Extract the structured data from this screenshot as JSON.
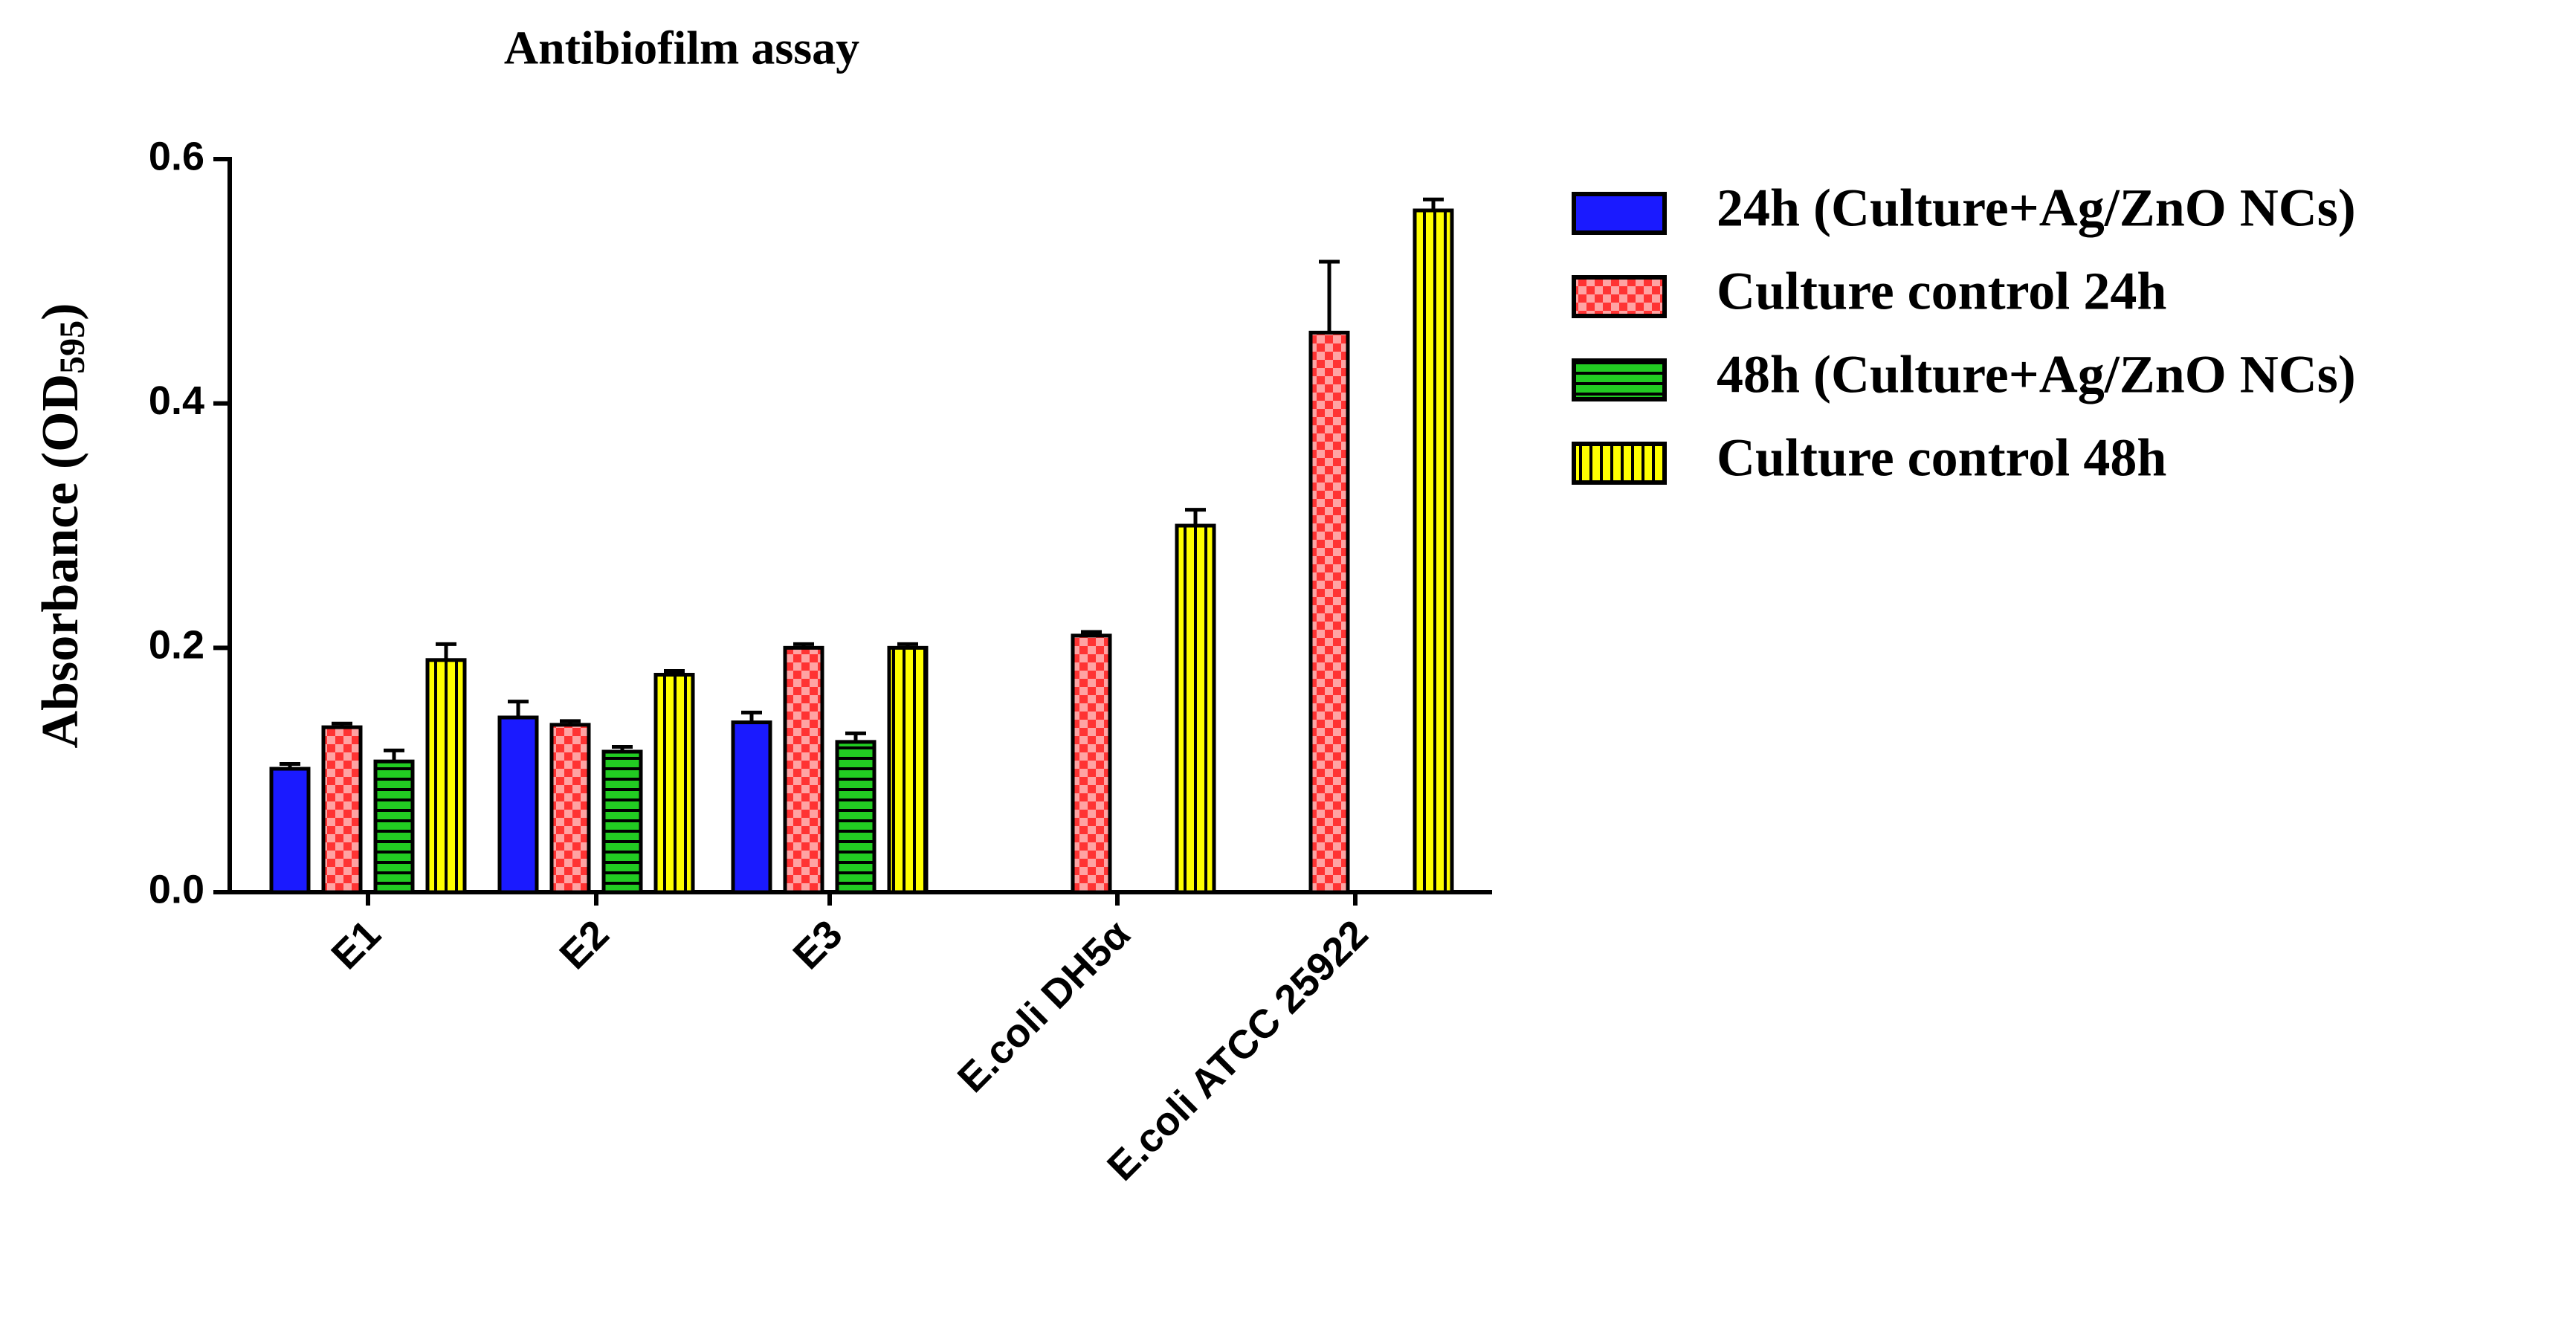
{
  "chart_data": {
    "type": "bar",
    "title": "Antibiofilm assay",
    "y_label_parts": [
      "Absorbance (OD",
      "595",
      ")"
    ],
    "categories": [
      "E1",
      "E2",
      "E3",
      "E.coli DH5α",
      "E.coli ATCC 25922"
    ],
    "series": [
      {
        "name": "24h (Culture+Ag/ZnO NCs)",
        "color": "#1a1aff",
        "pattern": "solid",
        "values": [
          0.101,
          0.143,
          0.139,
          null,
          null
        ],
        "errors": [
          0.004,
          0.013,
          0.008,
          null,
          null
        ]
      },
      {
        "name": "Culture control 24h",
        "color": "#ff3333",
        "pattern": "checker",
        "values": [
          0.135,
          0.137,
          0.2,
          0.21,
          0.458
        ],
        "errors": [
          0.003,
          0.003,
          0.003,
          0.003,
          0.058
        ]
      },
      {
        "name": "48h (Culture+Ag/ZnO NCs)",
        "color": "#22cc22",
        "pattern": "hstripe",
        "values": [
          0.107,
          0.115,
          0.123,
          null,
          null
        ],
        "errors": [
          0.009,
          0.004,
          0.007,
          null,
          null
        ]
      },
      {
        "name": "Culture control 48h",
        "color": "#ffff00",
        "pattern": "vstripe",
        "values": [
          0.19,
          0.178,
          0.2,
          0.3,
          0.558
        ],
        "errors": [
          0.013,
          0.003,
          0.003,
          0.013,
          0.009
        ]
      }
    ],
    "ylim": [
      0,
      0.6
    ],
    "yticks": [
      {
        "value": 0,
        "label": "0.0"
      },
      0.2,
      0.4,
      0.6
    ],
    "legend": "right"
  }
}
